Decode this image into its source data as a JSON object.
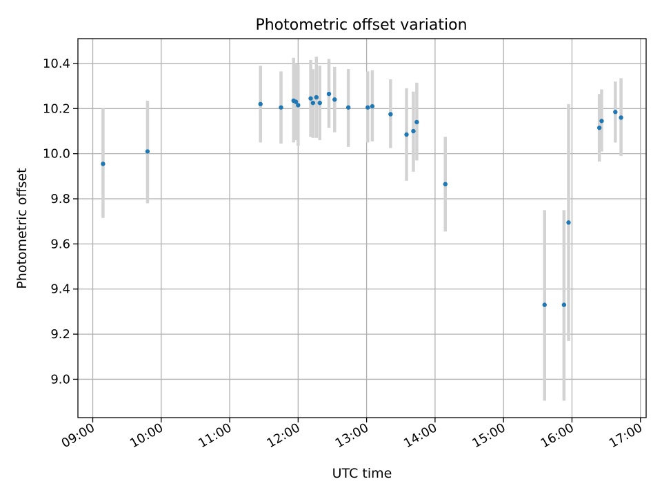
{
  "chart_data": {
    "type": "scatter",
    "title": "Photometric offset variation",
    "xlabel": "UTC time",
    "ylabel": "Photometric offset",
    "x_ticks": [
      "09:00",
      "10:00",
      "11:00",
      "12:00",
      "13:00",
      "14:00",
      "15:00",
      "16:00",
      "17:00"
    ],
    "y_ticks": [
      "9.0",
      "9.2",
      "9.4",
      "9.6",
      "9.8",
      "10.0",
      "10.2",
      "10.4"
    ],
    "xlim": [
      "08:47",
      "17:05"
    ],
    "ylim": [
      8.83,
      10.51
    ],
    "grid": true,
    "legend": "none",
    "colors": {
      "point": "#1f77b4",
      "errorbar": "#d3d3d3",
      "grid": "#b0b0b0"
    },
    "points": [
      {
        "x": "09:09",
        "y": 9.955,
        "lo": 9.715,
        "hi": 10.2
      },
      {
        "x": "09:48",
        "y": 10.01,
        "lo": 9.78,
        "hi": 10.235
      },
      {
        "x": "11:27",
        "y": 10.22,
        "lo": 10.05,
        "hi": 10.39
      },
      {
        "x": "11:45",
        "y": 10.205,
        "lo": 10.045,
        "hi": 10.365
      },
      {
        "x": "11:56",
        "y": 10.235,
        "lo": 10.05,
        "hi": 10.425
      },
      {
        "x": "11:58",
        "y": 10.23,
        "lo": 10.06,
        "hi": 10.4
      },
      {
        "x": "12:00",
        "y": 10.215,
        "lo": 10.035,
        "hi": 10.395
      },
      {
        "x": "12:11",
        "y": 10.245,
        "lo": 10.075,
        "hi": 10.415
      },
      {
        "x": "12:13",
        "y": 10.225,
        "lo": 10.07,
        "hi": 10.375
      },
      {
        "x": "12:16",
        "y": 10.25,
        "lo": 10.07,
        "hi": 10.43
      },
      {
        "x": "12:19",
        "y": 10.225,
        "lo": 10.06,
        "hi": 10.39
      },
      {
        "x": "12:27",
        "y": 10.265,
        "lo": 10.115,
        "hi": 10.42
      },
      {
        "x": "12:32",
        "y": 10.24,
        "lo": 10.095,
        "hi": 10.385
      },
      {
        "x": "12:44",
        "y": 10.205,
        "lo": 10.03,
        "hi": 10.375
      },
      {
        "x": "13:01",
        "y": 10.205,
        "lo": 10.05,
        "hi": 10.365
      },
      {
        "x": "13:05",
        "y": 10.21,
        "lo": 10.055,
        "hi": 10.37
      },
      {
        "x": "13:21",
        "y": 10.175,
        "lo": 10.025,
        "hi": 10.33
      },
      {
        "x": "13:35",
        "y": 10.085,
        "lo": 9.88,
        "hi": 10.29
      },
      {
        "x": "13:41",
        "y": 10.1,
        "lo": 9.92,
        "hi": 10.275
      },
      {
        "x": "13:44",
        "y": 10.14,
        "lo": 9.97,
        "hi": 10.315
      },
      {
        "x": "14:09",
        "y": 9.865,
        "lo": 9.655,
        "hi": 10.075
      },
      {
        "x": "15:36",
        "y": 9.33,
        "lo": 8.905,
        "hi": 9.75
      },
      {
        "x": "15:53",
        "y": 9.33,
        "lo": 8.905,
        "hi": 9.75
      },
      {
        "x": "15:57",
        "y": 9.695,
        "lo": 9.17,
        "hi": 10.22
      },
      {
        "x": "16:24",
        "y": 10.115,
        "lo": 9.965,
        "hi": 10.265
      },
      {
        "x": "16:26",
        "y": 10.145,
        "lo": 10.01,
        "hi": 10.285
      },
      {
        "x": "16:38",
        "y": 10.185,
        "lo": 10.05,
        "hi": 10.32
      },
      {
        "x": "16:43",
        "y": 10.16,
        "lo": 9.99,
        "hi": 10.335
      }
    ]
  }
}
